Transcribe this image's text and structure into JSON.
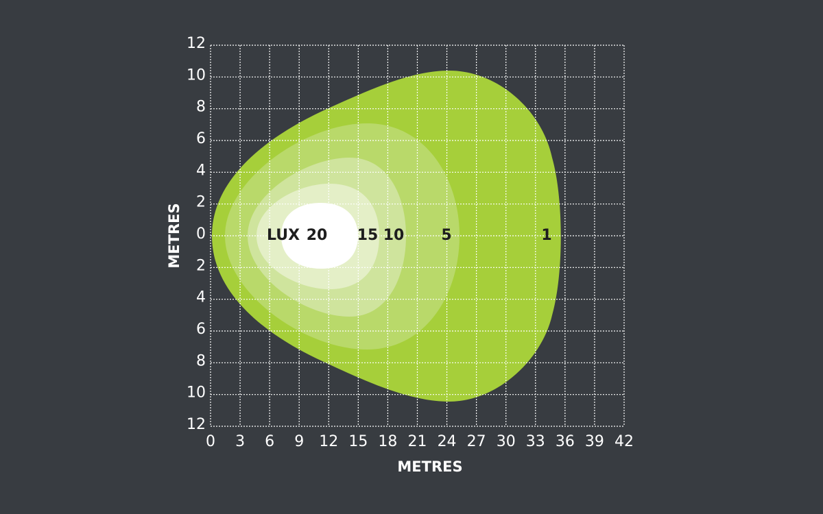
{
  "chart_data": {
    "type": "contour",
    "xlabel": "METRES",
    "ylabel": "METRES",
    "xlim": [
      0,
      42
    ],
    "xticks": [
      0,
      3,
      6,
      9,
      12,
      15,
      18,
      21,
      24,
      27,
      30,
      33,
      36,
      39,
      42
    ],
    "ylim": [
      -12,
      12
    ],
    "yticks": [
      {
        "value": -12,
        "label": "12"
      },
      {
        "value": -10,
        "label": "10"
      },
      {
        "value": -8,
        "label": "8"
      },
      {
        "value": -6,
        "label": "6"
      },
      {
        "value": -4,
        "label": "4"
      },
      {
        "value": -2,
        "label": "2"
      },
      0,
      2,
      4,
      6,
      8,
      10,
      12
    ],
    "grid": true,
    "levels_title": "LUX",
    "levels": [
      {
        "value": 1,
        "color": "#a6cf3a"
      },
      {
        "value": 5,
        "color": "#b9d96a"
      },
      {
        "value": 10,
        "color": "#cfe49d"
      },
      {
        "value": 15,
        "color": "#e4efc7"
      },
      {
        "value": 20,
        "color": "#ffffff"
      }
    ]
  }
}
